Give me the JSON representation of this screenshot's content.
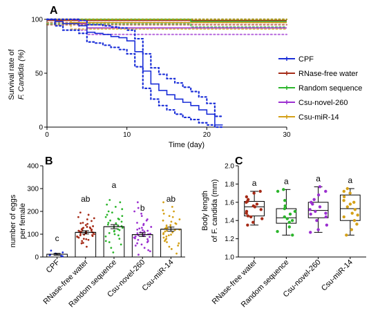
{
  "chart_data": [
    {
      "panel": "A",
      "type": "line",
      "ylabel_line1": "Survival rate of",
      "ylabel_line2": "F. Candida (%)",
      "xlabel": "Time (day)",
      "xlim": [
        0,
        30
      ],
      "ylim": [
        0,
        100
      ],
      "x_ticks": [
        0,
        10,
        20,
        30
      ],
      "y_ticks": [
        0,
        50,
        100
      ],
      "legend_position": "right",
      "series": [
        {
          "name": "CPF",
          "color": "#1a2ed8",
          "step_x": [
            0,
            1,
            2,
            4,
            5,
            6,
            7,
            8,
            9,
            10,
            11,
            12,
            13,
            14,
            15,
            16,
            17,
            18,
            19,
            20,
            21,
            22
          ],
          "step_y": [
            100,
            98,
            96,
            94,
            88,
            87,
            86,
            84,
            83,
            80,
            70,
            52,
            40,
            34,
            30,
            26,
            23,
            20,
            16,
            12,
            2,
            2
          ],
          "ci_upper": [
            100,
            100,
            100,
            99,
            95,
            95,
            94,
            93,
            92,
            90,
            82,
            68,
            55,
            49,
            45,
            41,
            37,
            33,
            28,
            22,
            10,
            10
          ],
          "ci_lower": [
            100,
            94,
            90,
            87,
            79,
            78,
            76,
            74,
            72,
            68,
            56,
            36,
            26,
            20,
            16,
            12,
            9,
            7,
            4,
            2,
            0,
            0
          ]
        },
        {
          "name": "RNase-free water",
          "color": "#a52a16",
          "step_x": [
            0,
            30
          ],
          "step_y": [
            99,
            99
          ],
          "ci_upper": [
            100,
            100
          ],
          "ci_lower": [
            95,
            95
          ]
        },
        {
          "name": "Random sequence",
          "color": "#2bb52b",
          "step_x": [
            0,
            18,
            30
          ],
          "step_y": [
            100,
            98,
            98
          ],
          "ci_upper": [
            100,
            100,
            100
          ],
          "ci_lower": [
            96,
            93,
            93
          ]
        },
        {
          "name": "Csu-novel-260",
          "color": "#9b2fd0",
          "step_x": [
            0,
            4,
            5,
            30
          ],
          "step_y": [
            100,
            96,
            92,
            92
          ],
          "ci_upper": [
            100,
            99,
            97,
            97
          ],
          "ci_lower": [
            97,
            90,
            86,
            86
          ]
        },
        {
          "name": "Csu-miR-14",
          "color": "#d4a017",
          "step_x": [
            0,
            3,
            30
          ],
          "step_y": [
            100,
            97,
            97
          ],
          "ci_upper": [
            100,
            100,
            100
          ],
          "ci_lower": [
            97,
            91,
            91
          ]
        }
      ]
    },
    {
      "panel": "B",
      "type": "bar",
      "ylabel_line1": "number of eggs",
      "ylabel_line2": "per female",
      "ylim": [
        0,
        400
      ],
      "y_ticks": [
        0,
        100,
        200,
        300,
        400
      ],
      "categories": [
        "CPF",
        "RNase-free water",
        "Random sequence",
        "Csu-novel-260",
        "Csu-miR-14"
      ],
      "colors": [
        "#1a2ed8",
        "#a52a16",
        "#2bb52b",
        "#9b2fd0",
        "#d4a017"
      ],
      "means": [
        12,
        108,
        133,
        98,
        122
      ],
      "sem": [
        4,
        7,
        9,
        8,
        9
      ],
      "letters": [
        "c",
        "ab",
        "a",
        "b",
        "ab"
      ],
      "points": [
        [
          5,
          8,
          15,
          20,
          28,
          3,
          10
        ],
        [
          45,
          62,
          70,
          78,
          85,
          88,
          92,
          95,
          98,
          100,
          102,
          104,
          106,
          108,
          110,
          112,
          115,
          118,
          120,
          122,
          125,
          128,
          130,
          135,
          140,
          145,
          150,
          158,
          165,
          175,
          185,
          195,
          60,
          75,
          90,
          105,
          115,
          132,
          148,
          170,
          80,
          96,
          112,
          126
        ],
        [
          20,
          40,
          55,
          70,
          80,
          90,
          100,
          105,
          112,
          118,
          122,
          128,
          132,
          138,
          142,
          148,
          155,
          160,
          168,
          175,
          185,
          195,
          210,
          230,
          250,
          65,
          95,
          115,
          135,
          150,
          165,
          180,
          200,
          220,
          240
        ],
        [
          10,
          25,
          40,
          50,
          60,
          70,
          78,
          85,
          90,
          95,
          100,
          104,
          108,
          112,
          118,
          125,
          132,
          140,
          150,
          165,
          180,
          200,
          215,
          55,
          75,
          88,
          98,
          106,
          115,
          128,
          145,
          160,
          190,
          240,
          30,
          65,
          82,
          92,
          102,
          120
        ],
        [
          15,
          35,
          50,
          65,
          75,
          85,
          95,
          100,
          108,
          115,
          120,
          126,
          132,
          140,
          148,
          155,
          165,
          175,
          190,
          205,
          220,
          240,
          45,
          70,
          90,
          105,
          118,
          130,
          145,
          160,
          180,
          200,
          60,
          80,
          98,
          112,
          125,
          138
        ]
      ]
    },
    {
      "panel": "C",
      "type": "box",
      "ylabel_line1": "Body length",
      "ylabel_line2": "of F. candida (mm)",
      "ylim": [
        1.0,
        2.0
      ],
      "y_ticks": [
        "1.0",
        "1.2",
        "1.4",
        "1.6",
        "1.8",
        "2.0"
      ],
      "categories": [
        "RNase-free water",
        "Random sequence",
        "Csu-novel-260",
        "Csu-miR-14"
      ],
      "colors": [
        "#a52a16",
        "#2bb52b",
        "#9b2fd0",
        "#d4a017"
      ],
      "letters": [
        "a",
        "a",
        "a",
        "a"
      ],
      "box": [
        {
          "min": 1.35,
          "q1": 1.45,
          "median": 1.55,
          "q3": 1.61,
          "max": 1.72
        },
        {
          "min": 1.24,
          "q1": 1.37,
          "median": 1.43,
          "q3": 1.53,
          "max": 1.74
        },
        {
          "min": 1.27,
          "q1": 1.43,
          "median": 1.51,
          "q3": 1.6,
          "max": 1.77
        },
        {
          "min": 1.24,
          "q1": 1.4,
          "median": 1.53,
          "q3": 1.68,
          "max": 1.75
        }
      ],
      "points": [
        [
          1.35,
          1.38,
          1.42,
          1.45,
          1.48,
          1.52,
          1.55,
          1.56,
          1.58,
          1.6,
          1.61,
          1.63,
          1.66,
          1.7,
          1.72,
          1.5,
          1.44
        ],
        [
          1.24,
          1.28,
          1.33,
          1.38,
          1.4,
          1.42,
          1.44,
          1.47,
          1.5,
          1.53,
          1.56,
          1.62,
          1.72,
          1.74
        ],
        [
          1.27,
          1.3,
          1.35,
          1.4,
          1.44,
          1.47,
          1.5,
          1.52,
          1.55,
          1.58,
          1.6,
          1.63,
          1.68,
          1.72,
          1.77,
          1.48
        ],
        [
          1.24,
          1.3,
          1.36,
          1.4,
          1.44,
          1.48,
          1.52,
          1.55,
          1.58,
          1.62,
          1.66,
          1.7,
          1.72,
          1.75,
          1.46,
          1.6
        ]
      ]
    }
  ],
  "panel_labels": [
    "A",
    "B",
    "C"
  ]
}
